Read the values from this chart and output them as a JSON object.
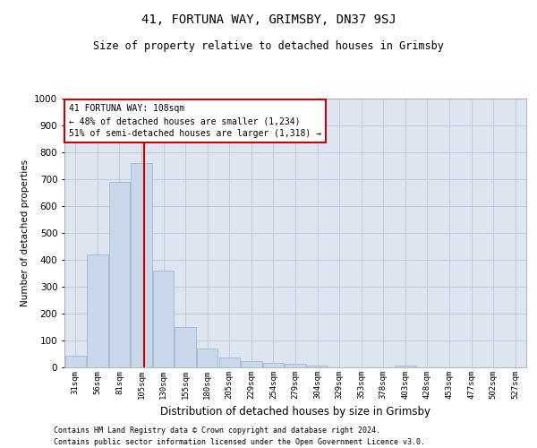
{
  "title1": "41, FORTUNA WAY, GRIMSBY, DN37 9SJ",
  "title2": "Size of property relative to detached houses in Grimsby",
  "xlabel": "Distribution of detached houses by size in Grimsby",
  "ylabel": "Number of detached properties",
  "categories": [
    "31sqm",
    "56sqm",
    "81sqm",
    "105sqm",
    "130sqm",
    "155sqm",
    "180sqm",
    "205sqm",
    "229sqm",
    "254sqm",
    "279sqm",
    "304sqm",
    "329sqm",
    "353sqm",
    "378sqm",
    "403sqm",
    "428sqm",
    "453sqm",
    "477sqm",
    "502sqm",
    "527sqm"
  ],
  "values": [
    45,
    420,
    690,
    760,
    360,
    150,
    70,
    38,
    25,
    18,
    13,
    8,
    0,
    0,
    0,
    8,
    0,
    0,
    0,
    0,
    0
  ],
  "bar_color": "#c8d8ea",
  "bar_edge_color": "#a8bcd0",
  "grid_color": "#bfcbdb",
  "background_color": "#dde5f0",
  "redline_x": 3.12,
  "annotation_line1": "41 FORTUNA WAY: 108sqm",
  "annotation_line2": "← 48% of detached houses are smaller (1,234)",
  "annotation_line3": "51% of semi-detached houses are larger (1,318) →",
  "annotation_box_color": "#ffffff",
  "annotation_box_edge": "#cc0000",
  "redline_color": "#cc0000",
  "ylim": [
    0,
    1000
  ],
  "yticks": [
    0,
    100,
    200,
    300,
    400,
    500,
    600,
    700,
    800,
    900,
    1000
  ],
  "footer1": "Contains HM Land Registry data © Crown copyright and database right 2024.",
  "footer2": "Contains public sector information licensed under the Open Government Licence v3.0."
}
